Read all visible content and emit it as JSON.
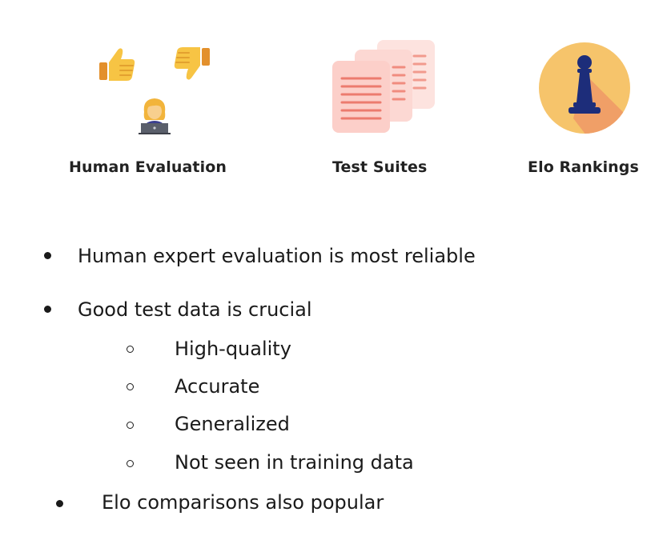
{
  "icons": {
    "human": {
      "label": "Human Evaluation",
      "thumbs_up": "thumbs-up-icon",
      "thumbs_down": "thumbs-down-icon",
      "person": "person-at-laptop-icon"
    },
    "tests": {
      "label": "Test Suites",
      "icon": "documents-stack-icon",
      "color": "#fcd8d3",
      "line_color": "#f08c7f"
    },
    "elo": {
      "label": "Elo Rankings",
      "icon": "chess-pawn-icon",
      "circle_color": "#f6c46b",
      "shadow_color": "#ef9966",
      "pawn_color": "#1d2d7a"
    }
  },
  "bullets": {
    "b1": "Human expert evaluation is most reliable",
    "b2": "Good test data is crucial",
    "sub": [
      "High-quality",
      "Accurate",
      "Generalized",
      "Not seen in training data"
    ],
    "b3": "Elo comparisons also popular"
  }
}
